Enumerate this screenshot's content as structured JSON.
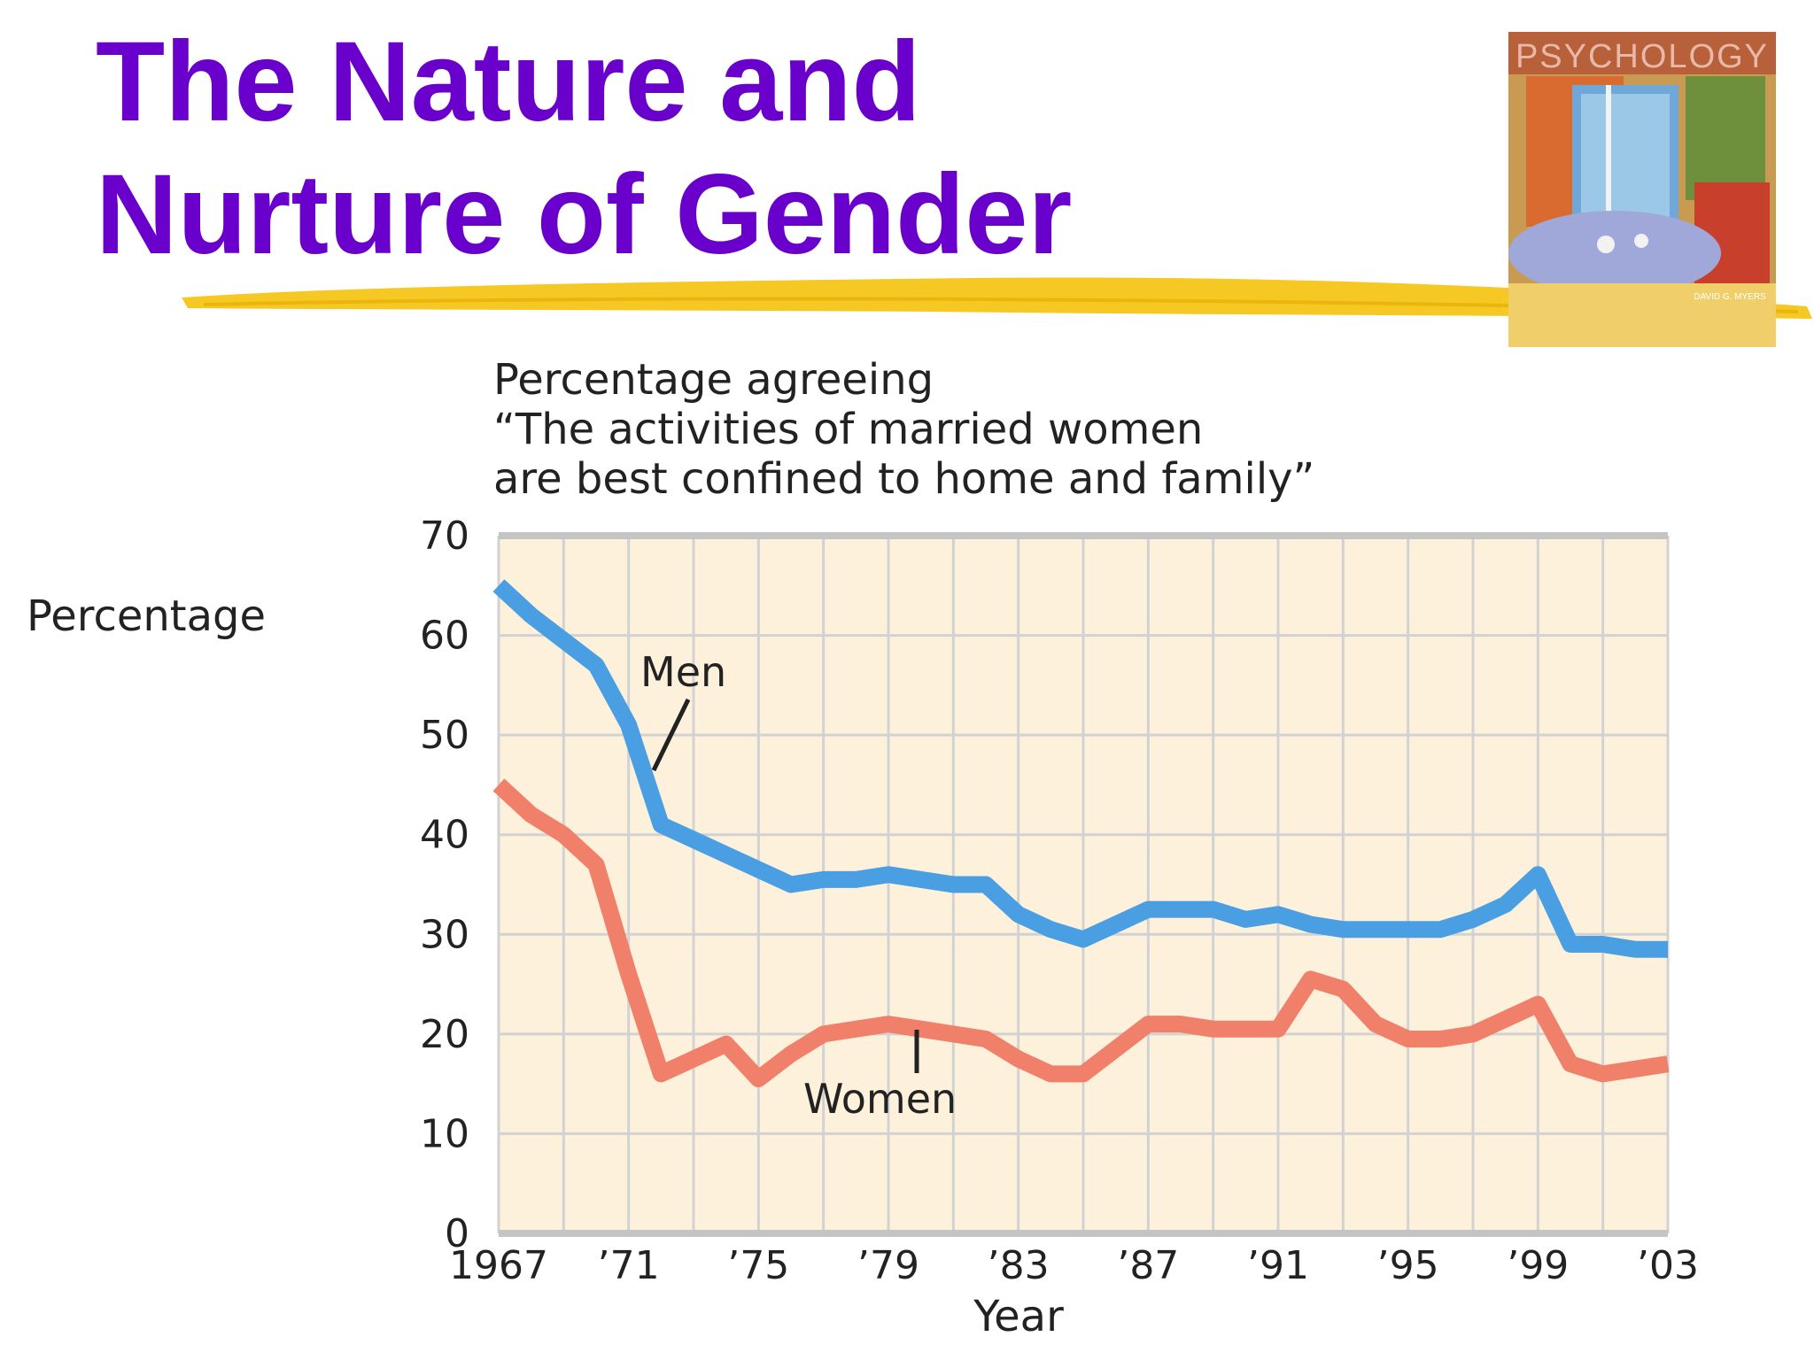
{
  "slide": {
    "title_line1": "The Nature and",
    "title_line2": "Nurture of Gender"
  },
  "book_cover": {
    "title": "PSYCHOLOGY",
    "author": "DAVID G. MYERS"
  },
  "colors": {
    "title": "#6a00cc",
    "highlighter": "#f5c518",
    "plot_background": "#fdf1dc",
    "grid": "#d2d2d2",
    "men": "#4a9fe3",
    "women": "#f0806a"
  },
  "chart_data": {
    "type": "line",
    "title": [
      "Percentage agreeing",
      "“The activities of married women",
      "are best confined to home and family”"
    ],
    "xlabel": "Year",
    "ylabel": "Percentage",
    "xlim": [
      1967,
      2003
    ],
    "ylim": [
      0,
      70
    ],
    "xticks": [
      1967,
      1971,
      1975,
      1979,
      1983,
      1987,
      1991,
      1995,
      1999,
      2003
    ],
    "xtick_labels": [
      "1967",
      "’71",
      "’75",
      "’79",
      "’83",
      "’87",
      "’91",
      "’95",
      "’99",
      "’03"
    ],
    "yticks": [
      0,
      10,
      20,
      30,
      40,
      50,
      60,
      70
    ],
    "ytick_labels": [
      "0",
      "10",
      "20",
      "30",
      "40",
      "50",
      "60",
      "70"
    ],
    "grid": true,
    "series": [
      {
        "name": "Men",
        "x": [
          1967,
          1968,
          1969,
          1970,
          1971,
          1972,
          1973,
          1974,
          1975,
          1976,
          1977,
          1978,
          1979,
          1980,
          1981,
          1982,
          1983,
          1984,
          1985,
          1986,
          1987,
          1988,
          1989,
          1990,
          1991,
          1992,
          1993,
          1994,
          1995,
          1996,
          1997,
          1998,
          1999,
          2000,
          2001,
          2002,
          2003
        ],
        "y": [
          65,
          62,
          59.5,
          57,
          51,
          41,
          39.5,
          38,
          36.5,
          35,
          35.5,
          35.5,
          36,
          35.5,
          35,
          35,
          32,
          30.5,
          29.5,
          31,
          32.5,
          32.5,
          32.5,
          31.5,
          32,
          31,
          30.5,
          30.5,
          30.5,
          30.5,
          31.5,
          33,
          36,
          29,
          29,
          28.5,
          28.5
        ]
      },
      {
        "name": "Women",
        "x": [
          1967,
          1968,
          1969,
          1970,
          1971,
          1972,
          1973,
          1974,
          1975,
          1976,
          1977,
          1978,
          1979,
          1980,
          1981,
          1982,
          1983,
          1984,
          1985,
          1986,
          1987,
          1988,
          1989,
          1990,
          1991,
          1992,
          1993,
          1994,
          1995,
          1996,
          1997,
          1998,
          1999,
          2000,
          2001,
          2002,
          2003
        ],
        "y": [
          45,
          42,
          40,
          37,
          26,
          16,
          17.5,
          19,
          15.5,
          18,
          20,
          20.5,
          21,
          20.5,
          20,
          19.5,
          17.5,
          16,
          16,
          18.5,
          21,
          21,
          20.5,
          20.5,
          20.5,
          25.5,
          24.5,
          21,
          19.5,
          19.5,
          20,
          21.5,
          23,
          17,
          16,
          16.5,
          17
        ]
      }
    ]
  }
}
